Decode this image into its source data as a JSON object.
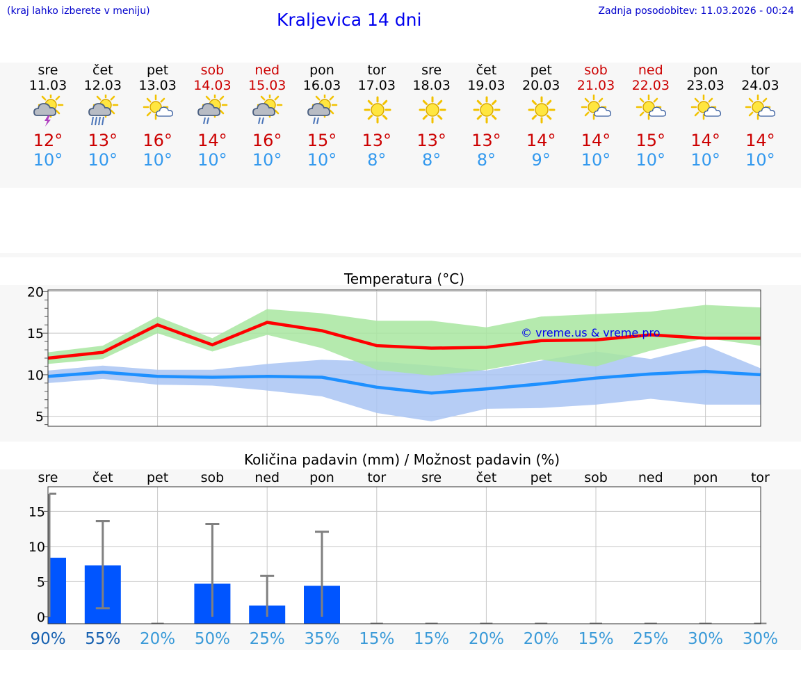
{
  "header": {
    "note": "(kraj lahko izberete v meniju)",
    "title": "Kraljevica 14 dni",
    "updated": "Zadnja posodobitev: 11.03.2026 - 00:24"
  },
  "days": [
    {
      "name": "sre",
      "date": "11.03",
      "weekend": false,
      "icon": "sun-cloud-thunder-icon",
      "tmax": "12°",
      "tmin": "10°"
    },
    {
      "name": "čet",
      "date": "12.03",
      "weekend": false,
      "icon": "sun-cloud-rain-icon",
      "tmax": "13°",
      "tmin": "10°"
    },
    {
      "name": "pet",
      "date": "13.03",
      "weekend": false,
      "icon": "sun-cloud-icon",
      "tmax": "16°",
      "tmin": "10°"
    },
    {
      "name": "sob",
      "date": "14.03",
      "weekend": true,
      "icon": "sun-cloud-drizzle-icon",
      "tmax": "14°",
      "tmin": "10°"
    },
    {
      "name": "ned",
      "date": "15.03",
      "weekend": true,
      "icon": "sun-cloud-drizzle-icon",
      "tmax": "16°",
      "tmin": "10°"
    },
    {
      "name": "pon",
      "date": "16.03",
      "weekend": false,
      "icon": "sun-cloud-drizzle-icon",
      "tmax": "15°",
      "tmin": "10°"
    },
    {
      "name": "tor",
      "date": "17.03",
      "weekend": false,
      "icon": "sun-icon",
      "tmax": "13°",
      "tmin": "8°"
    },
    {
      "name": "sre",
      "date": "18.03",
      "weekend": false,
      "icon": "sun-icon",
      "tmax": "13°",
      "tmin": "8°"
    },
    {
      "name": "čet",
      "date": "19.03",
      "weekend": false,
      "icon": "sun-icon",
      "tmax": "13°",
      "tmin": "8°"
    },
    {
      "name": "pet",
      "date": "20.03",
      "weekend": false,
      "icon": "sun-icon",
      "tmax": "14°",
      "tmin": "9°"
    },
    {
      "name": "sob",
      "date": "21.03",
      "weekend": true,
      "icon": "sun-cloud-icon",
      "tmax": "14°",
      "tmin": "10°"
    },
    {
      "name": "ned",
      "date": "22.03",
      "weekend": true,
      "icon": "sun-cloud-icon",
      "tmax": "15°",
      "tmin": "10°"
    },
    {
      "name": "pon",
      "date": "23.03",
      "weekend": false,
      "icon": "sun-cloud-icon",
      "tmax": "14°",
      "tmin": "10°"
    },
    {
      "name": "tor",
      "date": "24.03",
      "weekend": false,
      "icon": "sun-cloud-icon",
      "tmax": "14°",
      "tmin": "10°"
    }
  ],
  "colors": {
    "max": "#ff0000",
    "maxBand": "#a8e6a0",
    "min": "#1e90ff",
    "minBand": "#a9c4f3",
    "overlap": "#80c4a8",
    "bar": "#0055ff",
    "err": "#808080",
    "watermark": "#0000ee"
  },
  "chart_data": [
    {
      "type": "line",
      "title": "Temperatura (°C)",
      "watermark": "© vreme.us & vreme.pro",
      "ylim": [
        3.8,
        20.2
      ],
      "yticks": [
        5,
        10,
        15,
        20
      ],
      "series": [
        {
          "name": "max",
          "values": [
            12.0,
            12.7,
            16.0,
            13.6,
            16.3,
            15.3,
            13.5,
            13.2,
            13.3,
            14.1,
            14.2,
            14.8,
            14.4,
            14.4
          ],
          "band_low": [
            11.3,
            11.9,
            15.0,
            12.8,
            14.8,
            13.2,
            10.6,
            9.9,
            10.6,
            11.8,
            11.0,
            12.9,
            14.4,
            13.5
          ],
          "band_high": [
            12.7,
            13.5,
            17.0,
            14.4,
            17.9,
            17.4,
            16.5,
            16.5,
            15.7,
            17.0,
            17.3,
            17.6,
            18.4,
            18.1
          ]
        },
        {
          "name": "min",
          "values": [
            9.8,
            10.3,
            9.8,
            9.7,
            9.8,
            9.7,
            8.5,
            7.8,
            8.3,
            8.9,
            9.6,
            10.1,
            10.4,
            10.0
          ],
          "band_low": [
            9.0,
            9.5,
            8.8,
            8.7,
            8.1,
            7.4,
            5.4,
            4.4,
            5.9,
            6.0,
            6.4,
            7.1,
            6.4,
            6.4
          ],
          "band_high": [
            10.5,
            11.1,
            10.6,
            10.6,
            11.3,
            11.8,
            11.6,
            11.1,
            10.5,
            11.7,
            12.8,
            11.9,
            13.5,
            10.8
          ]
        }
      ]
    },
    {
      "type": "bar",
      "title": "Količina padavin (mm) / Možnost padavin (%)",
      "categories": [
        "sre",
        "čet",
        "pet",
        "sob",
        "ned",
        "pon",
        "tor",
        "sre",
        "čet",
        "pet",
        "sob",
        "ned",
        "pon",
        "tor"
      ],
      "values": [
        8.4,
        7.3,
        0,
        4.7,
        1.6,
        4.4,
        0,
        0,
        0,
        0,
        0,
        0,
        0,
        0
      ],
      "err_low": [
        0,
        1.2,
        0,
        0,
        0,
        0,
        0,
        0,
        0,
        0,
        0,
        0,
        0,
        0
      ],
      "err_high": [
        17.5,
        13.6,
        0,
        13.2,
        5.8,
        12.1,
        0,
        0,
        0,
        0,
        0,
        0,
        0,
        0
      ],
      "chance": [
        "90%",
        "55%",
        "20%",
        "50%",
        "25%",
        "35%",
        "15%",
        "15%",
        "20%",
        "20%",
        "15%",
        "25%",
        "30%",
        "30%"
      ],
      "ylim": [
        -1.0,
        18.5
      ],
      "yticks": [
        0,
        5,
        10,
        15
      ]
    }
  ]
}
